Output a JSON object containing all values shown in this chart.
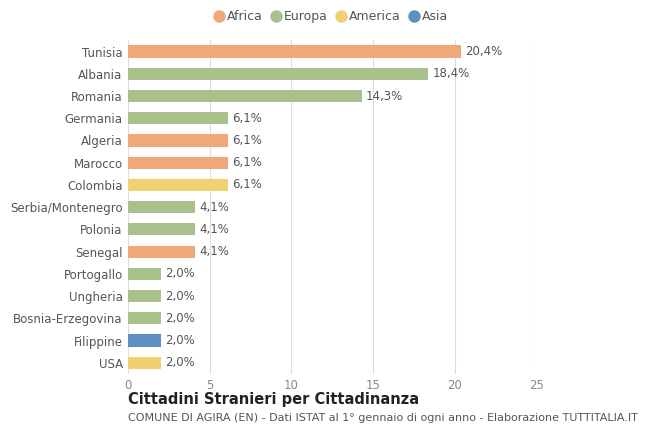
{
  "countries": [
    "Tunisia",
    "Albania",
    "Romania",
    "Germania",
    "Algeria",
    "Marocco",
    "Colombia",
    "Serbia/Montenegro",
    "Polonia",
    "Senegal",
    "Portogallo",
    "Ungheria",
    "Bosnia-Erzegovina",
    "Filippine",
    "USA"
  ],
  "values": [
    20.4,
    18.4,
    14.3,
    6.1,
    6.1,
    6.1,
    6.1,
    4.1,
    4.1,
    4.1,
    2.0,
    2.0,
    2.0,
    2.0,
    2.0
  ],
  "continents": [
    "Africa",
    "Europa",
    "Europa",
    "Europa",
    "Africa",
    "Africa",
    "America",
    "Europa",
    "Europa",
    "Africa",
    "Europa",
    "Europa",
    "Europa",
    "Asia",
    "America"
  ],
  "labels": [
    "20,4%",
    "18,4%",
    "14,3%",
    "6,1%",
    "6,1%",
    "6,1%",
    "6,1%",
    "4,1%",
    "4,1%",
    "4,1%",
    "2,0%",
    "2,0%",
    "2,0%",
    "2,0%",
    "2,0%"
  ],
  "colors": {
    "Africa": "#F0A878",
    "Europa": "#A8C08A",
    "America": "#F0D070",
    "Asia": "#6090C0"
  },
  "legend_order": [
    "Africa",
    "Europa",
    "America",
    "Asia"
  ],
  "xlim": [
    0,
    25
  ],
  "xticks": [
    0,
    5,
    10,
    15,
    20,
    25
  ],
  "title": "Cittadini Stranieri per Cittadinanza",
  "subtitle": "COMUNE DI AGIRA (EN) - Dati ISTAT al 1° gennaio di ogni anno - Elaborazione TUTTITALIA.IT",
  "background_color": "#ffffff",
  "grid_color": "#dddddd",
  "bar_height": 0.55,
  "label_fontsize": 8.5,
  "tick_fontsize": 8.5,
  "title_fontsize": 10.5,
  "subtitle_fontsize": 8.0
}
